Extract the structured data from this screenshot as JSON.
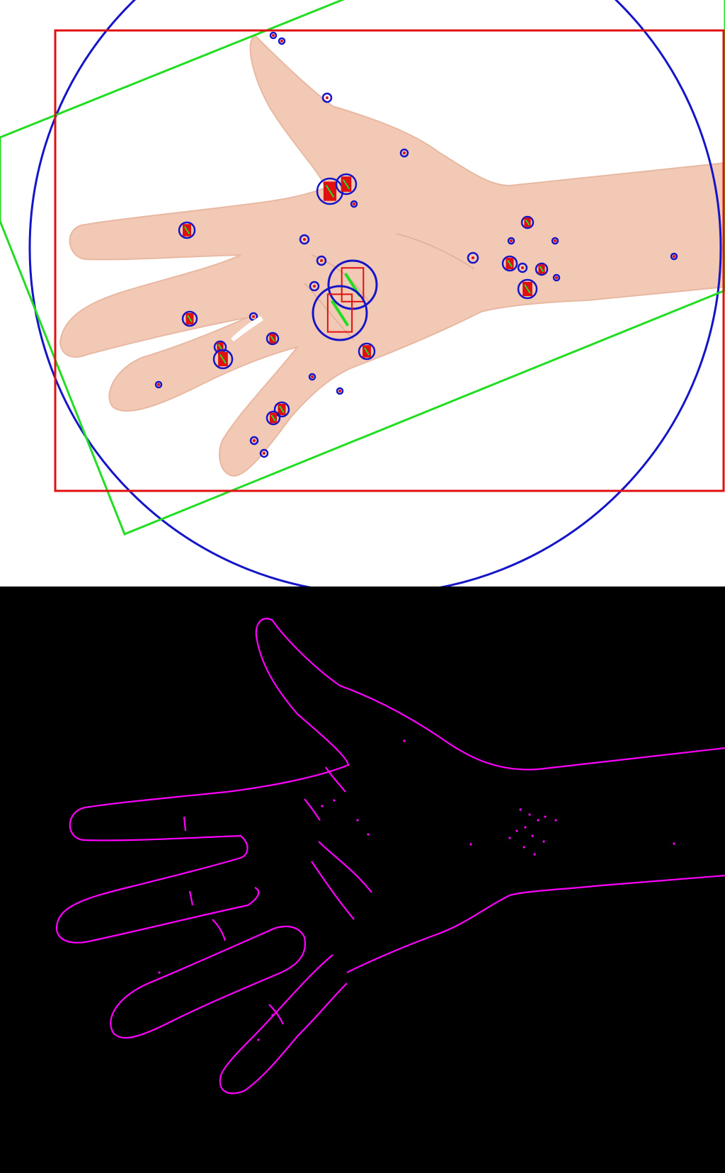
{
  "figure": {
    "panels": [
      {
        "id": "annotated-photo",
        "content": "hand-palm-with-detections"
      },
      {
        "id": "edge-map",
        "content": "hand-contour-edges"
      }
    ]
  },
  "colors": {
    "photo_background": "#ffffff",
    "skin": "#f2c9b5",
    "skin_shadow": "#e6b29c",
    "bbox_red": "#e01010",
    "min_area_rect_green": "#22dd22",
    "enclosing_circle_blue": "#1414c8",
    "edge_background": "#000000",
    "edge_magenta": "#ff00ff"
  },
  "icons": {
    "detection_marker": "circle-with-inner-box"
  }
}
